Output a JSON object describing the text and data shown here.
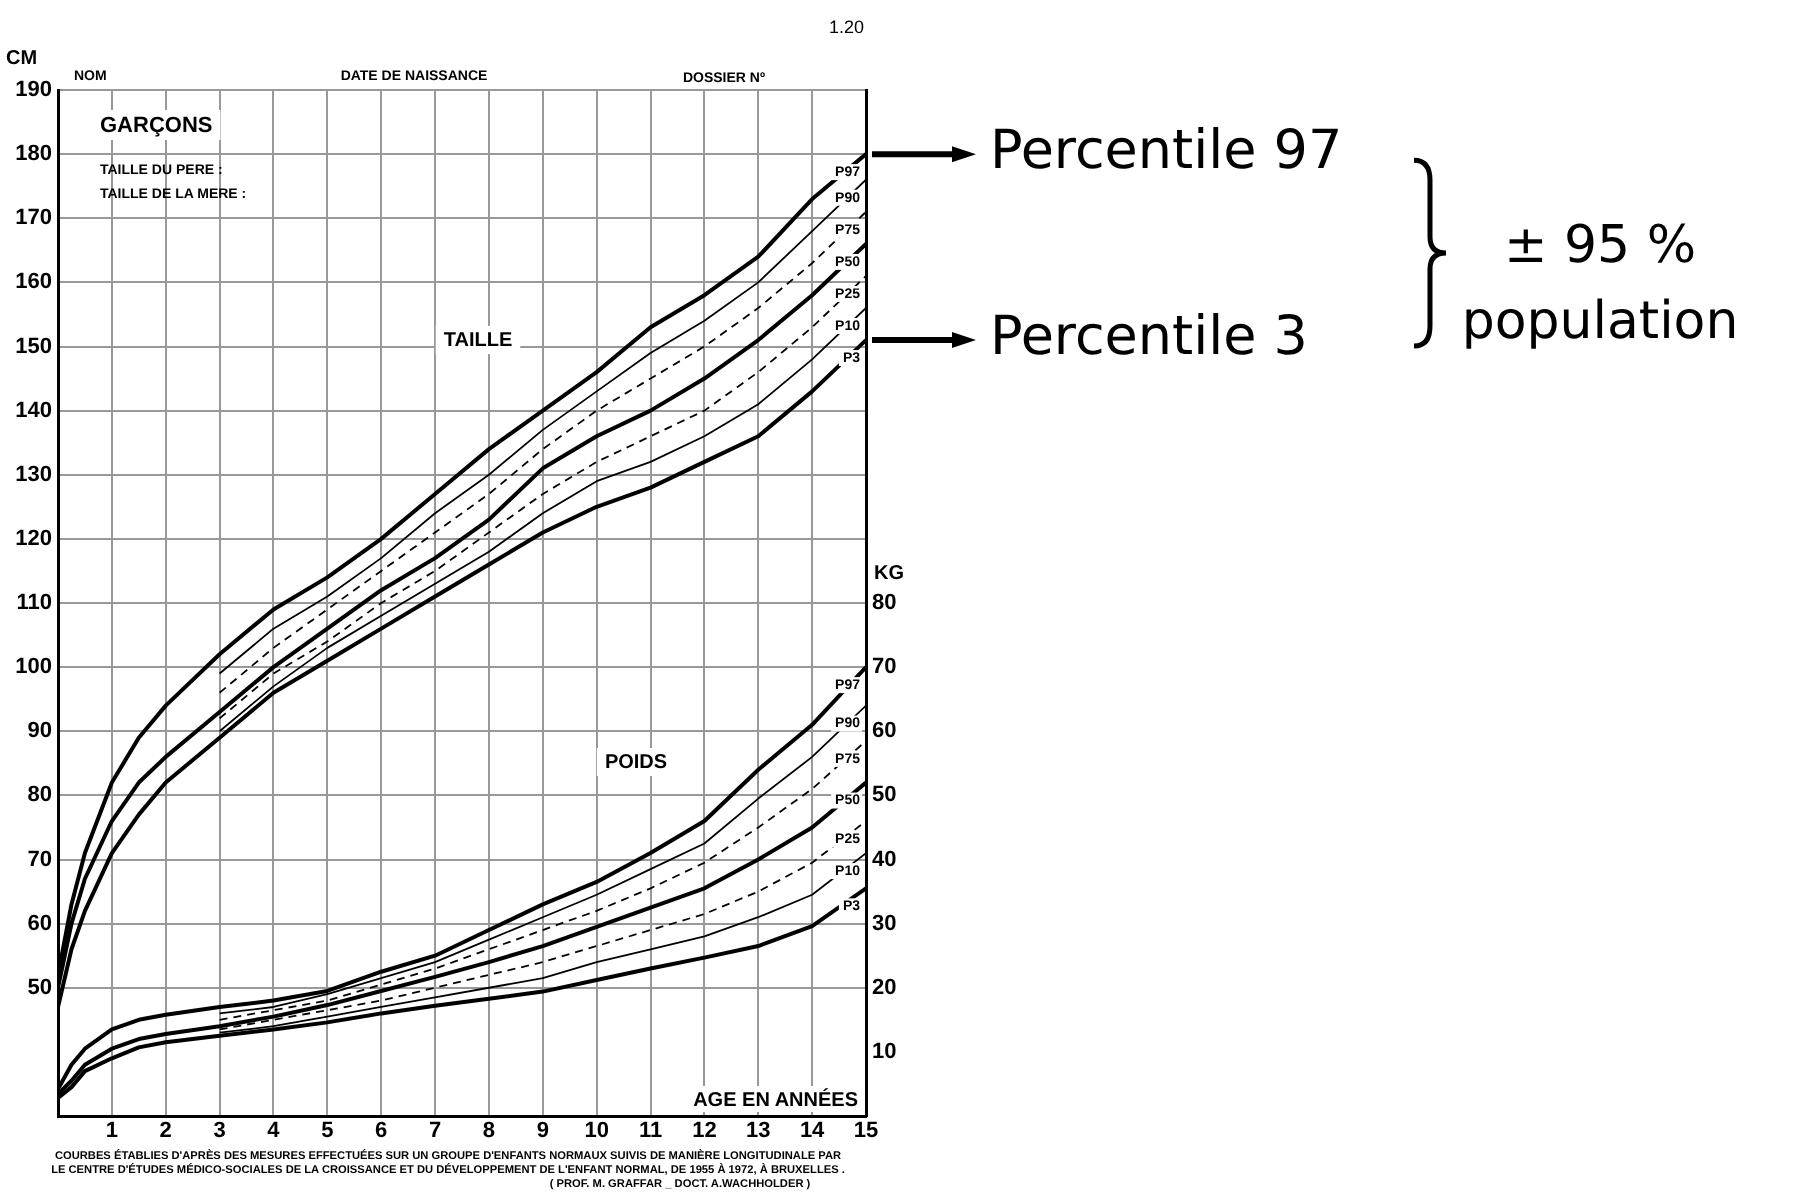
{
  "chart_data": {
    "type": "line",
    "title": "GARÇONS",
    "ylabel": "CM",
    "y2label": "KG",
    "xlabel": "AGE EN ANNÉES",
    "annotations": [
      "1.20",
      "NOM",
      "DATE DE NAISSANCE",
      "DOSSIER Nº",
      "TAILLE DU PERE :",
      "TAILLE DE LA MERE :",
      "TAILLE",
      "POIDS",
      "COURBES ÉTABLIES D'APRÈS DES MESURES EFFECTUÉES SUR UN GROUPE D'ENFANTS NORMAUX SUIVIS DE MANIÈRE LONGITUDINALE PAR",
      "LE CENTRE D'ÉTUDES MÉDICO-SOCIALES DE LA CROISSANCE ET DU DÉVELOPPEMENT DE L'ENFANT NORMAL, DE 1955 À 1972, À BRUXELLES .",
      "( PROF. M. GRAFFAR _ DOCT. A.WACHHOLDER )",
      {
        "text": "Percentile 97",
        "x": 15,
        "y": 180
      },
      {
        "text": "Percentile 3",
        "x": 15,
        "y": 151
      },
      "± 95 %",
      "population"
    ],
    "x": [
      0,
      0.25,
      0.5,
      1,
      1.5,
      2,
      3,
      4,
      5,
      6,
      7,
      8,
      9,
      10,
      11,
      12,
      13,
      14,
      15
    ],
    "series": [
      {
        "name": "P97",
        "color": "#000000",
        "line_style": "solid",
        "values": [
          52,
          63,
          71,
          82,
          89,
          94,
          102,
          109,
          114,
          120,
          127,
          134,
          140,
          146,
          153,
          158,
          164,
          173,
          180
        ]
      },
      {
        "name": "P90",
        "color": "#000000",
        "line_style": "solid",
        "x": [
          3,
          4,
          5,
          6,
          7,
          8,
          9,
          10,
          11,
          12,
          13,
          14,
          15
        ],
        "values": [
          99,
          106,
          111,
          117,
          124,
          130,
          137,
          143,
          149,
          154,
          160,
          168,
          176
        ]
      },
      {
        "name": "P75",
        "color": "#000000",
        "line_style": "dashed",
        "x": [
          3,
          4,
          5,
          6,
          7,
          8,
          9,
          10,
          11,
          12,
          13,
          14,
          15
        ],
        "values": [
          96,
          103,
          109,
          115,
          121,
          127,
          134,
          140,
          145,
          150,
          156,
          163,
          171
        ]
      },
      {
        "name": "P50",
        "color": "#000000",
        "line_style": "solid",
        "values": [
          50,
          60,
          67,
          76,
          82,
          86,
          93,
          100,
          106,
          112,
          117,
          123,
          131,
          136,
          140,
          145,
          151,
          158,
          166
        ]
      },
      {
        "name": "P25",
        "color": "#000000",
        "line_style": "dashed",
        "x": [
          3,
          4,
          5,
          6,
          7,
          8,
          9,
          10,
          11,
          12,
          13,
          14,
          15
        ],
        "values": [
          92,
          99,
          104,
          110,
          115,
          121,
          127,
          132,
          136,
          140,
          146,
          153,
          161
        ]
      },
      {
        "name": "P10",
        "color": "#000000",
        "line_style": "solid",
        "x": [
          3,
          4,
          5,
          6,
          7,
          8,
          9,
          10,
          11,
          12,
          13,
          14,
          15
        ],
        "values": [
          90,
          97,
          103,
          108,
          113,
          118,
          124,
          129,
          132,
          136,
          141,
          148,
          156
        ]
      },
      {
        "name": "P3",
        "color": "#000000",
        "line_style": "solid",
        "values": [
          47,
          56,
          62,
          71,
          77,
          82,
          89,
          96,
          101,
          106,
          111,
          116,
          121,
          125,
          128,
          132,
          136,
          143,
          151
        ]
      },
      {
        "name": "P97",
        "color": "#000000",
        "line_style": "solid",
        "axis": "y2",
        "values": [
          4.2,
          8,
          10.5,
          13.5,
          15,
          15.8,
          17,
          18,
          19.5,
          22.5,
          25,
          29,
          33,
          36.5,
          41,
          46,
          54,
          61,
          70
        ]
      },
      {
        "name": "P90",
        "color": "#000000",
        "line_style": "solid",
        "axis": "y2",
        "x": [
          3,
          4,
          5,
          6,
          7,
          8,
          9,
          10,
          11,
          12,
          13,
          14,
          15
        ],
        "values": [
          16,
          17,
          19,
          21.5,
          24,
          27.5,
          31,
          34.5,
          38.5,
          42.5,
          49.5,
          56,
          64
        ]
      },
      {
        "name": "P75",
        "color": "#000000",
        "line_style": "dashed",
        "axis": "y2",
        "x": [
          3,
          4,
          5,
          6,
          7,
          8,
          9,
          10,
          11,
          12,
          13,
          14,
          15
        ],
        "values": [
          15,
          16.5,
          18,
          20.5,
          23,
          26,
          29,
          32,
          35.5,
          39.5,
          45,
          51,
          58.5
        ]
      },
      {
        "name": "P50",
        "color": "#000000",
        "line_style": "solid",
        "axis": "y2",
        "values": [
          3.4,
          5.5,
          8,
          10.5,
          12,
          12.8,
          14,
          15.5,
          17.3,
          19.5,
          21.7,
          24,
          26.5,
          29.5,
          32.5,
          35.5,
          40,
          45,
          52
        ]
      },
      {
        "name": "P25",
        "color": "#000000",
        "line_style": "dashed",
        "axis": "y2",
        "x": [
          3,
          4,
          5,
          6,
          7,
          8,
          9,
          10,
          11,
          12,
          13,
          14,
          15
        ],
        "values": [
          13.5,
          15,
          16.5,
          18,
          20,
          22,
          24,
          26.5,
          29,
          31.5,
          35,
          39.5,
          46
        ]
      },
      {
        "name": "P10",
        "color": "#000000",
        "line_style": "solid",
        "axis": "y2",
        "x": [
          3,
          4,
          5,
          6,
          7,
          8,
          9,
          10,
          11,
          12,
          13,
          14,
          15
        ],
        "values": [
          13,
          14,
          15.5,
          17,
          18.5,
          20,
          21.5,
          24,
          26,
          28,
          31,
          34.5,
          41
        ]
      },
      {
        "name": "P3",
        "color": "#000000",
        "line_style": "solid",
        "axis": "y2",
        "values": [
          2.8,
          4.5,
          7,
          9,
          10.7,
          11.5,
          12.5,
          13.5,
          14.6,
          16,
          17.2,
          18.3,
          19.4,
          21.2,
          23,
          24.7,
          26.5,
          29.6,
          35.5
        ]
      }
    ],
    "xlim": [
      0,
      15
    ],
    "xticks": [
      1,
      2,
      3,
      4,
      5,
      6,
      7,
      8,
      9,
      10,
      11,
      12,
      13,
      14,
      15
    ],
    "ylim": [
      30,
      190
    ],
    "yticks": [
      50,
      60,
      70,
      80,
      90,
      100,
      110,
      120,
      130,
      140,
      150,
      160,
      170,
      180,
      190
    ],
    "y2lim": [
      0,
      160
    ],
    "y2ticks": [
      10,
      20,
      30,
      40,
      50,
      60,
      70,
      80
    ],
    "grid": true,
    "legend": false,
    "marker": "none"
  }
}
